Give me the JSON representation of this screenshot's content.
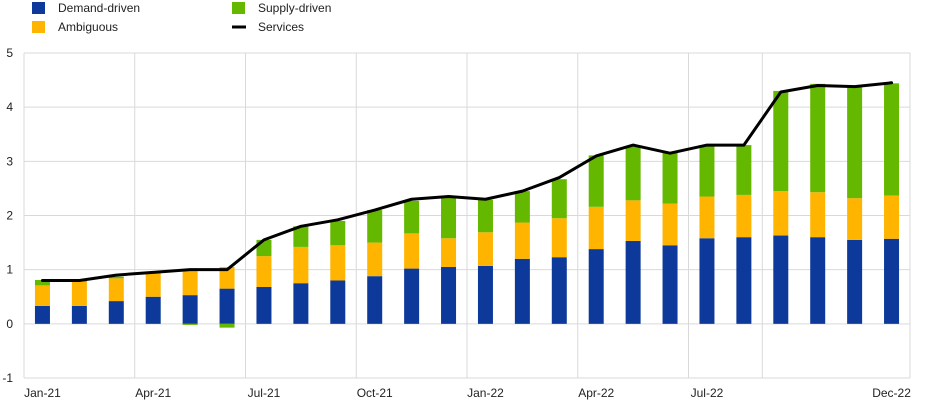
{
  "chart_data": {
    "type": "bar",
    "stacked": true,
    "grid": true,
    "legend_position": "top-left",
    "ylim": [
      -1,
      5
    ],
    "yticks": [
      -1,
      0,
      1,
      2,
      3,
      4,
      5
    ],
    "categories": [
      "Jan-21",
      "Feb-21",
      "Mar-21",
      "Apr-21",
      "May-21",
      "Jun-21",
      "Jul-21",
      "Aug-21",
      "Sep-21",
      "Oct-21",
      "Nov-21",
      "Dec-21",
      "Jan-22",
      "Feb-22",
      "Mar-22",
      "Apr-22",
      "May-22",
      "Jun-22",
      "Jul-22",
      "Aug-22",
      "Sep-22",
      "Oct-22",
      "Nov-22",
      "Dec-22"
    ],
    "xtick_labels": [
      {
        "index": 0,
        "label": "Jan-21"
      },
      {
        "index": 3,
        "label": "Apr-21"
      },
      {
        "index": 6,
        "label": "Jul-21"
      },
      {
        "index": 9,
        "label": "Oct-21"
      },
      {
        "index": 12,
        "label": "Jan-22"
      },
      {
        "index": 15,
        "label": "Apr-22"
      },
      {
        "index": 18,
        "label": "Jul-22"
      },
      {
        "index": 23,
        "label": "Dec-22"
      }
    ],
    "series": [
      {
        "name": "Demand-driven",
        "kind": "bar",
        "color": "#0d3a9a",
        "values": [
          0.33,
          0.33,
          0.42,
          0.5,
          0.53,
          0.65,
          0.68,
          0.75,
          0.8,
          0.88,
          1.02,
          1.05,
          1.07,
          1.2,
          1.23,
          1.38,
          1.53,
          1.45,
          1.58,
          1.6,
          1.63,
          1.6,
          1.55,
          1.57
        ]
      },
      {
        "name": "Ambiguous",
        "kind": "bar",
        "color": "#ffb400",
        "values": [
          0.38,
          0.45,
          0.42,
          0.43,
          0.45,
          0.4,
          0.57,
          0.67,
          0.65,
          0.62,
          0.65,
          0.53,
          0.62,
          0.67,
          0.72,
          0.78,
          0.75,
          0.77,
          0.77,
          0.78,
          0.82,
          0.83,
          0.77,
          0.8
        ]
      },
      {
        "name": "Supply-driven",
        "kind": "bar",
        "color": "#65b800",
        "values": [
          0.1,
          0.02,
          0.03,
          0.02,
          -0.02,
          -0.07,
          0.3,
          0.38,
          0.45,
          0.6,
          0.6,
          0.75,
          0.6,
          0.58,
          0.72,
          0.95,
          1.0,
          0.95,
          0.95,
          0.92,
          1.85,
          2.0,
          2.05,
          2.07
        ]
      },
      {
        "name": "Services",
        "kind": "line",
        "color": "#000000",
        "values": [
          0.8,
          0.8,
          0.9,
          0.95,
          1.0,
          1.0,
          1.55,
          1.8,
          1.92,
          2.1,
          2.3,
          2.35,
          2.3,
          2.45,
          2.7,
          3.1,
          3.3,
          3.15,
          3.3,
          3.3,
          4.28,
          4.4,
          4.38,
          4.45
        ]
      }
    ],
    "legend": [
      {
        "label": "Demand-driven",
        "color": "#0d3a9a",
        "marker": "square"
      },
      {
        "label": "Supply-driven",
        "color": "#65b800",
        "marker": "square"
      },
      {
        "label": "Ambiguous",
        "color": "#ffb400",
        "marker": "square"
      },
      {
        "label": "Services",
        "color": "#000000",
        "marker": "line"
      }
    ]
  }
}
